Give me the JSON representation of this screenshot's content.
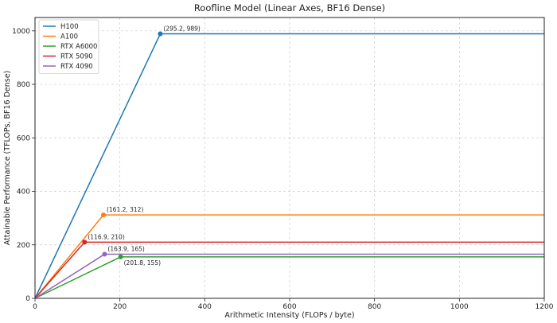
{
  "chart_data": {
    "type": "line",
    "title": "Roofline Model (Linear Axes, BF16 Dense)",
    "xlabel": "Arithmetic Intensity (FLOPs / byte)",
    "ylabel": "Attainable Performance (TFLOPs, BF16 Dense)",
    "xlim": [
      0,
      1200
    ],
    "ylim": [
      0,
      1050
    ],
    "xticks": [
      0,
      200,
      400,
      600,
      800,
      1000,
      1200
    ],
    "yticks": [
      0,
      200,
      400,
      600,
      800,
      1000
    ],
    "grid": true,
    "legend_position": "top-left",
    "series": [
      {
        "name": "H100",
        "color": "#1f77b4",
        "ridge_x": 295.2,
        "peak": 989,
        "label": "(295.2, 989)",
        "label_side": "above"
      },
      {
        "name": "A100",
        "color": "#ff7f0e",
        "ridge_x": 161.2,
        "peak": 312,
        "label": "(161.2, 312)",
        "label_side": "above"
      },
      {
        "name": "RTX A6000",
        "color": "#2ca02c",
        "ridge_x": 201.8,
        "peak": 155,
        "label": "(201.8, 155)",
        "label_side": "below"
      },
      {
        "name": "RTX 5090",
        "color": "#d62728",
        "ridge_x": 116.9,
        "peak": 210,
        "label": "(116.9, 210)",
        "label_side": "above"
      },
      {
        "name": "RTX 4090",
        "color": "#9467bd",
        "ridge_x": 163.9,
        "peak": 165,
        "label": "(163.9, 165)",
        "label_side": "above"
      }
    ]
  }
}
